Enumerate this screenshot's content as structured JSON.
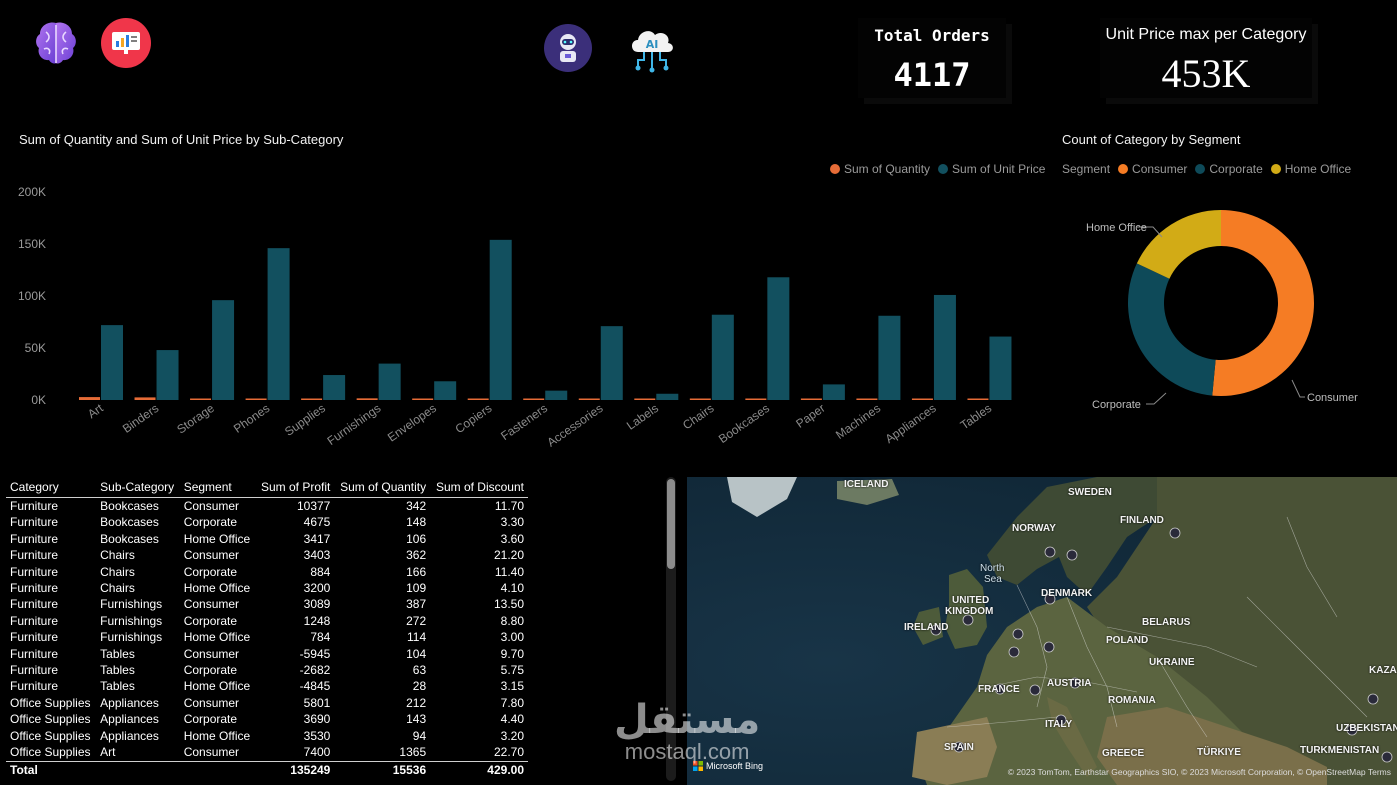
{
  "header": {
    "icons": [
      "brain-icon",
      "report-icon",
      "robot-icon",
      "ai-cloud-icon"
    ]
  },
  "kpis": {
    "total_orders": {
      "title": "Total Orders",
      "value": "4117"
    },
    "unit_price_max": {
      "title": "Unit Price max per Category",
      "value": "453K"
    }
  },
  "bar_chart": {
    "title": "Sum of Quantity and Sum of Unit Price by Sub-Category",
    "legend": [
      "Sum of Quantity",
      "Sum of Unit Price"
    ],
    "colors": {
      "quantity": "#e66c37",
      "unit_price": "#12505f"
    },
    "y_ticks": [
      "200K",
      "150K",
      "100K",
      "50K",
      "0K"
    ]
  },
  "donut_chart": {
    "title": "Count of Category by Segment",
    "legend_title": "Segment",
    "legend": [
      "Consumer",
      "Corporate",
      "Home Office"
    ],
    "colors": {
      "Consumer": "#f57c24",
      "Corporate": "#0e4a59",
      "Home Office": "#d2ab16"
    },
    "labels": {
      "home_office": "Home Office",
      "corporate": "Corporate",
      "consumer": "Consumer"
    }
  },
  "chart_data": [
    {
      "type": "bar",
      "title": "Sum of Quantity and Sum of Unit Price by Sub-Category",
      "categories": [
        "Art",
        "Binders",
        "Storage",
        "Phones",
        "Supplies",
        "Furnishings",
        "Envelopes",
        "Copiers",
        "Fasteners",
        "Accessories",
        "Labels",
        "Chairs",
        "Bookcases",
        "Paper",
        "Machines",
        "Appliances",
        "Tables"
      ],
      "series": [
        {
          "name": "Sum of Quantity",
          "values": [
            2800,
            2500,
            1200,
            1000,
            700,
            1600,
            500,
            500,
            500,
            1400,
            600,
            1000,
            800,
            1000,
            700,
            1200,
            900
          ]
        },
        {
          "name": "Sum of Unit Price",
          "values": [
            72000,
            48000,
            96000,
            146000,
            24000,
            35000,
            18000,
            154000,
            9000,
            71000,
            6000,
            82000,
            118000,
            15000,
            81000,
            101000,
            61000
          ]
        }
      ],
      "ylim": [
        0,
        200000
      ],
      "grid": false,
      "legend_position": "top-right"
    },
    {
      "type": "pie",
      "title": "Count of Category by Segment",
      "categories": [
        "Consumer",
        "Corporate",
        "Home Office"
      ],
      "values": [
        51.5,
        30.5,
        18.0
      ]
    }
  ],
  "table": {
    "columns": [
      "Category",
      "Sub-Category",
      "Segment",
      "Sum of Profit",
      "Sum of Quantity",
      "Sum of Discount"
    ],
    "rows": [
      [
        "Furniture",
        "Bookcases",
        "Consumer",
        "10377",
        "342",
        "11.70"
      ],
      [
        "Furniture",
        "Bookcases",
        "Corporate",
        "4675",
        "148",
        "3.30"
      ],
      [
        "Furniture",
        "Bookcases",
        "Home Office",
        "3417",
        "106",
        "3.60"
      ],
      [
        "Furniture",
        "Chairs",
        "Consumer",
        "3403",
        "362",
        "21.20"
      ],
      [
        "Furniture",
        "Chairs",
        "Corporate",
        "884",
        "166",
        "11.40"
      ],
      [
        "Furniture",
        "Chairs",
        "Home Office",
        "3200",
        "109",
        "4.10"
      ],
      [
        "Furniture",
        "Furnishings",
        "Consumer",
        "3089",
        "387",
        "13.50"
      ],
      [
        "Furniture",
        "Furnishings",
        "Corporate",
        "1248",
        "272",
        "8.80"
      ],
      [
        "Furniture",
        "Furnishings",
        "Home Office",
        "784",
        "114",
        "3.00"
      ],
      [
        "Furniture",
        "Tables",
        "Consumer",
        "-5945",
        "104",
        "9.70"
      ],
      [
        "Furniture",
        "Tables",
        "Corporate",
        "-2682",
        "63",
        "5.75"
      ],
      [
        "Furniture",
        "Tables",
        "Home Office",
        "-4845",
        "28",
        "3.15"
      ],
      [
        "Office Supplies",
        "Appliances",
        "Consumer",
        "5801",
        "212",
        "7.80"
      ],
      [
        "Office Supplies",
        "Appliances",
        "Corporate",
        "3690",
        "143",
        "4.40"
      ],
      [
        "Office Supplies",
        "Appliances",
        "Home Office",
        "3530",
        "94",
        "3.20"
      ],
      [
        "Office Supplies",
        "Art",
        "Consumer",
        "7400",
        "1365",
        "22.70"
      ]
    ],
    "total": [
      "Total",
      "",
      "",
      "135249",
      "15536",
      "429.00"
    ]
  },
  "map": {
    "labels": [
      {
        "text": "ICELAND",
        "cls": ""
      },
      {
        "text": "SWEDEN",
        "cls": ""
      },
      {
        "text": "FINLAND",
        "cls": ""
      },
      {
        "text": "NORWAY",
        "cls": ""
      },
      {
        "text": "North",
        "cls": "sea"
      },
      {
        "text": "Sea",
        "cls": "sea"
      },
      {
        "text": "UNITED",
        "cls": ""
      },
      {
        "text": "KINGDOM",
        "cls": ""
      },
      {
        "text": "DENMARK",
        "cls": ""
      },
      {
        "text": "IRELAND",
        "cls": ""
      },
      {
        "text": "BELARUS",
        "cls": ""
      },
      {
        "text": "POLAND",
        "cls": ""
      },
      {
        "text": "UKRAINE",
        "cls": ""
      },
      {
        "text": "FRANCE",
        "cls": ""
      },
      {
        "text": "AUSTRIA",
        "cls": ""
      },
      {
        "text": "ROMANIA",
        "cls": ""
      },
      {
        "text": "KAZA",
        "cls": ""
      },
      {
        "text": "ITALY",
        "cls": ""
      },
      {
        "text": "SPAIN",
        "cls": ""
      },
      {
        "text": "GREECE",
        "cls": ""
      },
      {
        "text": "TÜRKIYE",
        "cls": ""
      },
      {
        "text": "UZBEKISTAN",
        "cls": ""
      },
      {
        "text": "TURKMENISTAN",
        "cls": ""
      }
    ],
    "bing": "Microsoft Bing",
    "credit": "© 2023 TomTom, Earthstar Geographics SIO, © 2023 Microsoft Corporation, © OpenStreetMap  Terms"
  },
  "watermark": {
    "arabic": "مستقل",
    "latin": "mostaql.com"
  }
}
